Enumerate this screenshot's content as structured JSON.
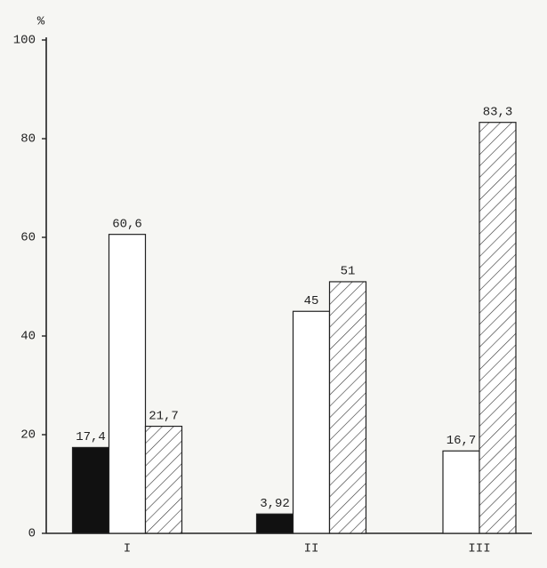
{
  "chart_data": {
    "type": "bar",
    "y_label": "%",
    "categories": [
      "I",
      "II",
      "III"
    ],
    "series": [
      {
        "color": "#111111",
        "values": [
          17.4,
          3.92,
          null
        ],
        "value_labels": [
          "17,4",
          "3,92",
          null
        ]
      },
      {
        "color": "#ffffff",
        "values": [
          60.6,
          45,
          16.7
        ],
        "value_labels": [
          "60,6",
          "45",
          "16,7"
        ]
      },
      {
        "color": "#ffffff",
        "hatch": true,
        "values": [
          21.7,
          51,
          83.3
        ],
        "value_labels": [
          "21,7",
          "51",
          "83,3"
        ]
      }
    ],
    "ylim": [
      0,
      100
    ],
    "yticks": [
      0,
      20,
      40,
      60,
      80,
      100
    ]
  }
}
